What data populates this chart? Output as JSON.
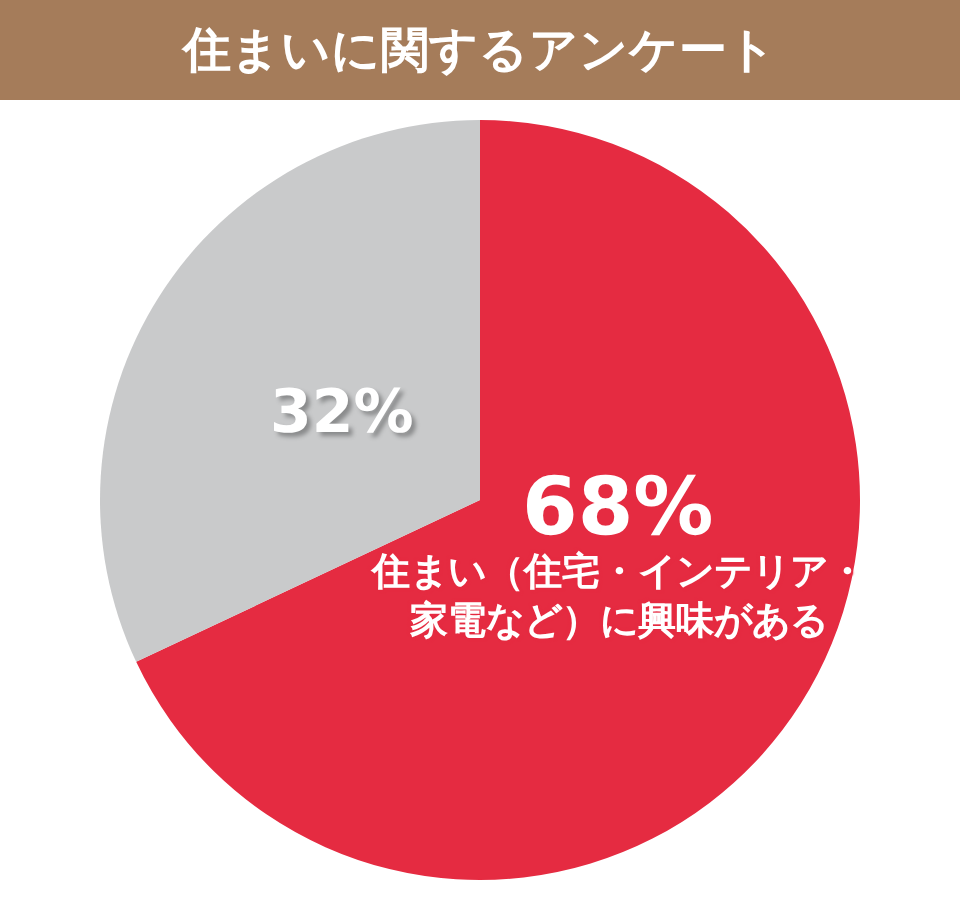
{
  "chart_data": {
    "type": "pie",
    "title": "住まいに関するアンケート",
    "categories": [
      "住まい（住宅・インテリア・家電など）に興味がある",
      null
    ],
    "values": [
      68,
      32
    ],
    "colors": [
      "#e52b41",
      "#c9cacb"
    ],
    "value_labels": [
      "68%",
      "32%"
    ]
  }
}
